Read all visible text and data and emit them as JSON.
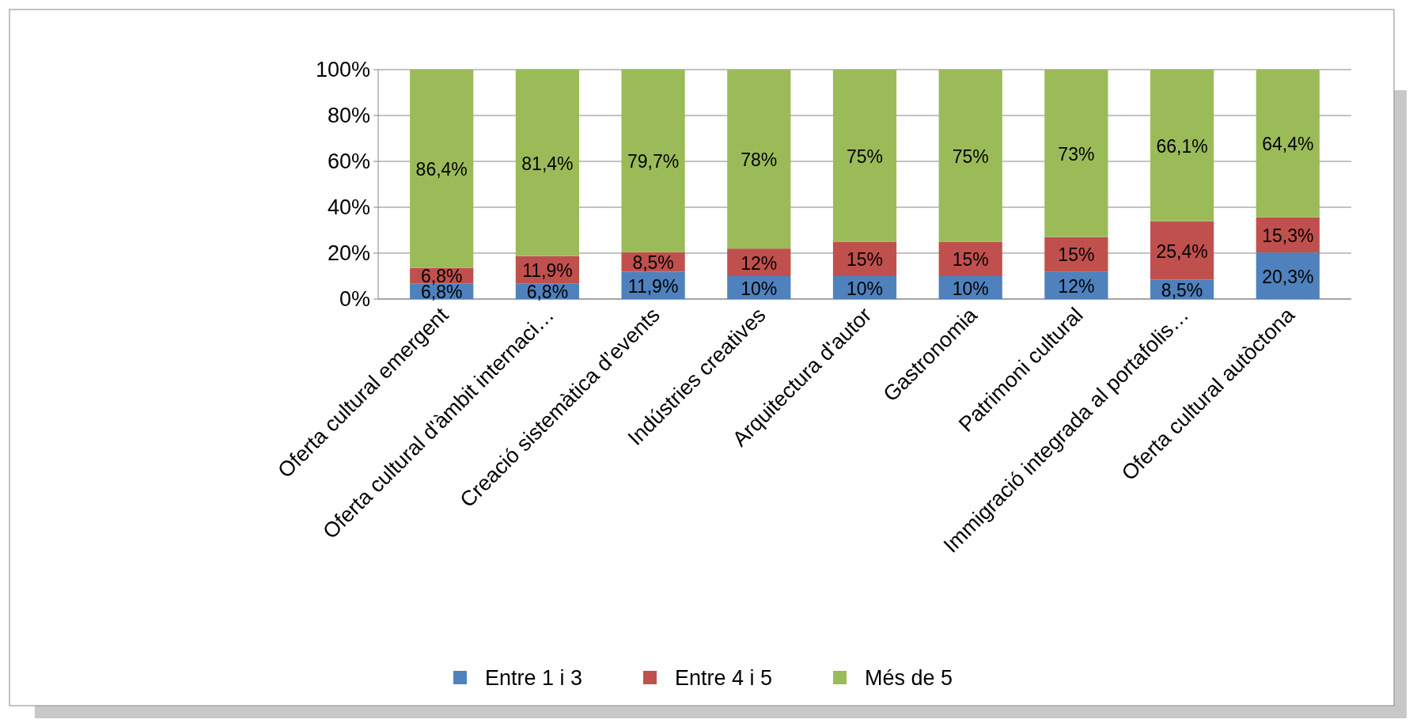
{
  "chart_data": {
    "type": "bar",
    "stacked": true,
    "categories": [
      "Oferta cultural emergent",
      "Oferta cultural d'àmbit internaci…",
      "Creació sistemàtica d’events",
      "Indústries creatives",
      "Arquitectura d'autor",
      "Gastronomia",
      "Patrimoni cultural",
      "Immigració integrada al portafolis…",
      "Oferta cultural autòctona"
    ],
    "series": [
      {
        "name": "Entre 1 i 3",
        "color": "#4f81bd",
        "values": [
          6.8,
          6.8,
          11.9,
          10,
          10,
          10,
          12,
          8.5,
          20.3
        ],
        "value_labels": [
          "6,8%",
          "6,8%",
          "11,9%",
          "10%",
          "10%",
          "10%",
          "12%",
          "8,5%",
          "20,3%"
        ]
      },
      {
        "name": "Entre 4 i 5",
        "color": "#c0504d",
        "values": [
          6.8,
          11.9,
          8.5,
          12,
          15,
          15,
          15,
          25.4,
          15.3
        ],
        "value_labels": [
          "6,8%",
          "11,9%",
          "8,5%",
          "12%",
          "15%",
          "15%",
          "15%",
          "25,4%",
          "15,3%"
        ]
      },
      {
        "name": "Més de 5",
        "color": "#9bbb59",
        "values": [
          86.4,
          81.4,
          79.7,
          78,
          75,
          75,
          73,
          66.1,
          64.4
        ],
        "value_labels": [
          "86,4%",
          "81,4%",
          "79,7%",
          "78%",
          "75%",
          "75%",
          "73%",
          "66,1%",
          "64,4%"
        ]
      }
    ],
    "ylim": [
      0,
      100
    ],
    "yticks": [
      {
        "value": 0,
        "label": "0%"
      },
      {
        "value": 20,
        "label": "20%"
      },
      {
        "value": 40,
        "label": "40%"
      },
      {
        "value": 60,
        "label": "60%"
      },
      {
        "value": 80,
        "label": "80%"
      },
      {
        "value": 100,
        "label": "100%"
      }
    ],
    "grid": "y",
    "legend": "bottom"
  }
}
